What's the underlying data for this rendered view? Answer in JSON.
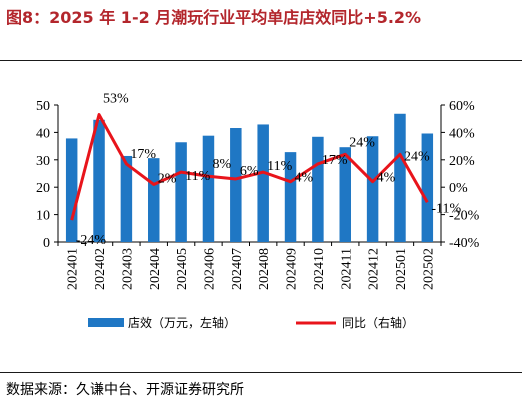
{
  "title": "图8：2025 年 1-2 月潮玩行业平均单店店效同比+5.2%",
  "source": "数据来源：久谦中台、开源证券研究所",
  "chart_data": {
    "type": "bar+line",
    "categories": [
      "202401",
      "202402",
      "202403",
      "202404",
      "202405",
      "202406",
      "202407",
      "202408",
      "202409",
      "202410",
      "202411",
      "202412",
      "202501",
      "202502"
    ],
    "series": [
      {
        "name": "店效（万元，左轴）",
        "type": "bar",
        "axis": "left",
        "color": "#1f77c4",
        "values": [
          37.8,
          44.6,
          31.4,
          30.6,
          36.4,
          38.8,
          41.6,
          42.9,
          32.8,
          38.4,
          34.6,
          38.6,
          46.8,
          39.6
        ]
      },
      {
        "name": "同比（右轴）",
        "type": "line",
        "axis": "right",
        "color": "#e8141b",
        "values": [
          -24,
          53,
          17,
          2,
          11,
          8,
          6,
          11,
          4,
          17,
          24,
          4,
          24,
          -11
        ]
      }
    ],
    "data_labels": [
      "-24%",
      "53%",
      "17%",
      "2%",
      "11%",
      "8%",
      "6%",
      "11%",
      "4%",
      "17%",
      "24%",
      "4%",
      "24%",
      "-11%"
    ],
    "left_axis": {
      "ylim": [
        0,
        50
      ],
      "ticks": [
        "0",
        "10",
        "20",
        "30",
        "40",
        "50"
      ]
    },
    "right_axis": {
      "ylim": [
        -40,
        60
      ],
      "ticks": [
        "-40%",
        "-20%",
        "0%",
        "20%",
        "40%",
        "60%"
      ]
    },
    "legend_position": "bottom",
    "grid": false
  }
}
